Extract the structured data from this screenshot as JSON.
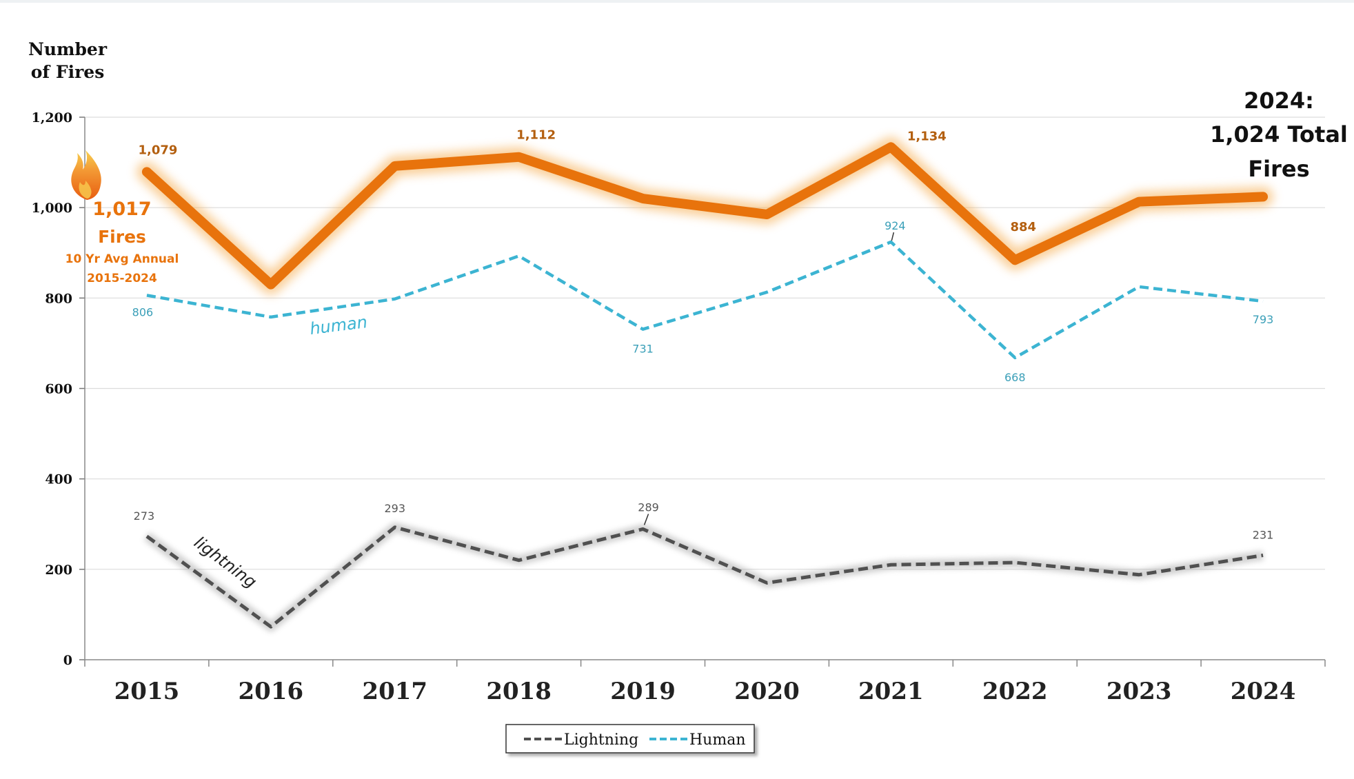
{
  "chart_data": {
    "type": "line",
    "ylabel_line1": "Number",
    "ylabel_line2": "of Fires",
    "categories": [
      "2015",
      "2016",
      "2017",
      "2018",
      "2019",
      "2020",
      "2021",
      "2022",
      "2023",
      "2024"
    ],
    "yticks": [
      "0",
      "200",
      "400",
      "600",
      "800",
      "1,000",
      "1,200"
    ],
    "ylim": [
      0,
      1200
    ],
    "grid": true,
    "series": [
      {
        "name": "Total",
        "color": "#e8730c",
        "style": "solid",
        "values": [
          1079,
          830,
          1092,
          1112,
          1020,
          985,
          1134,
          884,
          1013,
          1024
        ]
      },
      {
        "name": "Human",
        "color": "#3cb4d2",
        "style": "dashed",
        "values": [
          806,
          758,
          798,
          893,
          731,
          813,
          924,
          668,
          825,
          793
        ]
      },
      {
        "name": "Lightning",
        "color": "#505050",
        "style": "dashed",
        "values": [
          273,
          73,
          293,
          220,
          289,
          170,
          210,
          215,
          188,
          231
        ]
      }
    ],
    "total_labels": [
      {
        "i": 0,
        "text": "1,079"
      },
      {
        "i": 3,
        "text": "1,112"
      },
      {
        "i": 6,
        "text": "1,134"
      },
      {
        "i": 7,
        "text": "884"
      }
    ],
    "human_labels": [
      {
        "i": 0,
        "text": "806"
      },
      {
        "i": 4,
        "text": "731"
      },
      {
        "i": 6,
        "text": "924"
      },
      {
        "i": 7,
        "text": "668"
      },
      {
        "i": 9,
        "text": "793"
      }
    ],
    "lightning_labels": [
      {
        "i": 0,
        "text": "273"
      },
      {
        "i": 2,
        "text": "293"
      },
      {
        "i": 4,
        "text": "289"
      },
      {
        "i": 9,
        "text": "231"
      }
    ],
    "annotations": {
      "human_text": "human",
      "lightning_text": "lightning",
      "avg_value": "1,017",
      "avg_unit": "Fires",
      "avg_desc1": "10 Yr Avg Annual",
      "avg_desc2": "2015-2024",
      "total_line1": "2024:",
      "total_line2": "1,024 Total",
      "total_line3": "Fires"
    },
    "legend": {
      "placement": "bottom-center",
      "items": [
        {
          "label": "Lightning",
          "color": "#505050"
        },
        {
          "label": "Human",
          "color": "#3cb4d2"
        }
      ]
    },
    "flame_icon": "flame-icon"
  }
}
